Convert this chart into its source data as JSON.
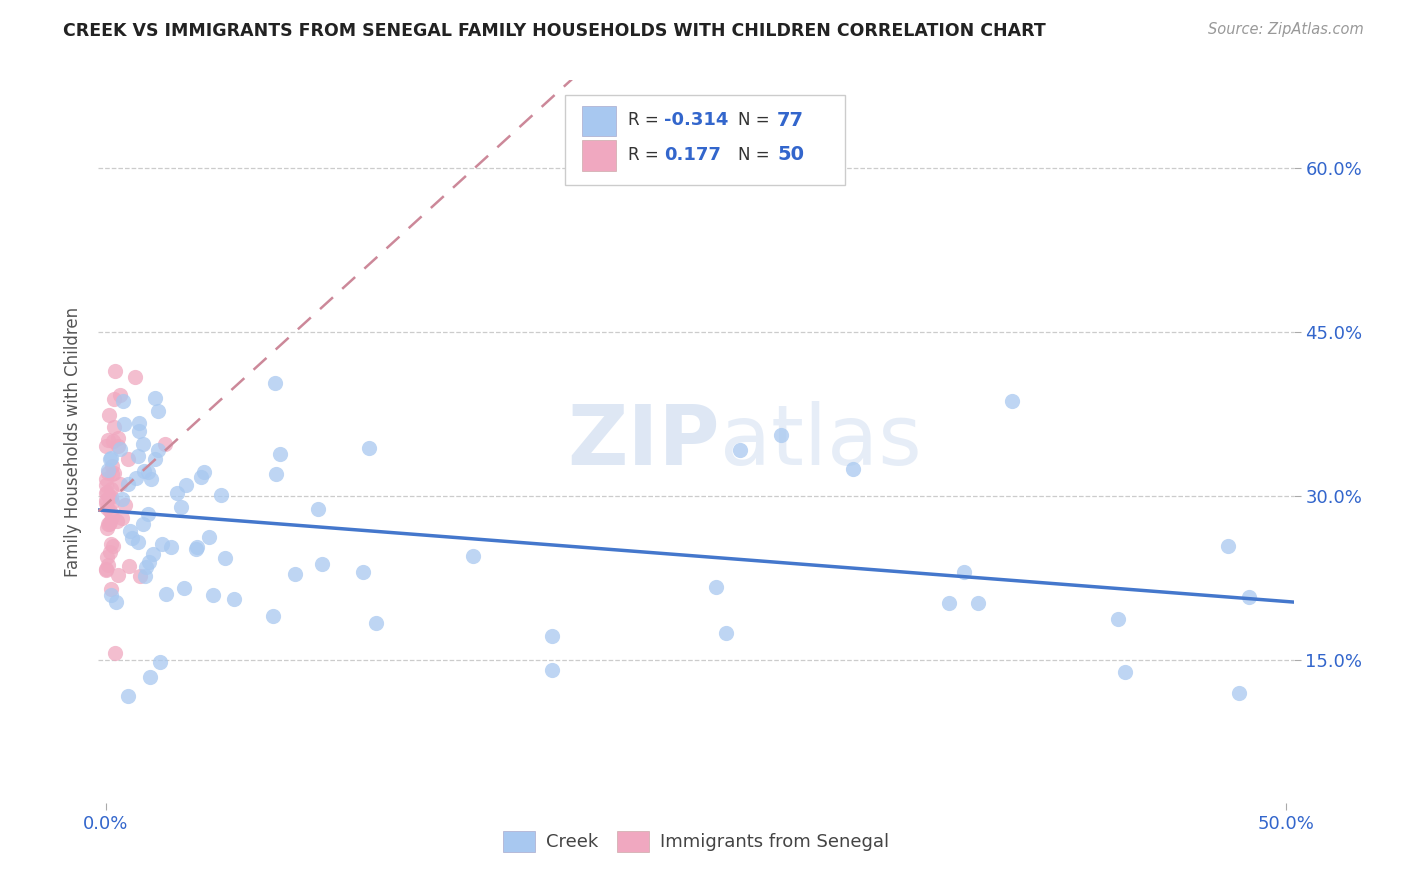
{
  "title": "CREEK VS IMMIGRANTS FROM SENEGAL FAMILY HOUSEHOLDS WITH CHILDREN CORRELATION CHART",
  "source": "Source: ZipAtlas.com",
  "ylabel": "Family Households with Children",
  "y_ticks": [
    0.15,
    0.3,
    0.45,
    0.6
  ],
  "y_tick_labels": [
    "15.0%",
    "30.0%",
    "45.0%",
    "60.0%"
  ],
  "xlim": [
    -0.003,
    0.503
  ],
  "ylim": [
    0.02,
    0.68
  ],
  "legend_r_creek": "-0.314",
  "legend_n_creek": "77",
  "legend_r_senegal": "0.177",
  "legend_n_senegal": "50",
  "creek_color": "#a8c8f0",
  "senegal_color": "#f0a8c0",
  "creek_line_color": "#4477cc",
  "senegal_line_color": "#cc8899",
  "watermark_zip": "ZIP",
  "watermark_atlas": "atlas",
  "grid_color": "#cccccc"
}
